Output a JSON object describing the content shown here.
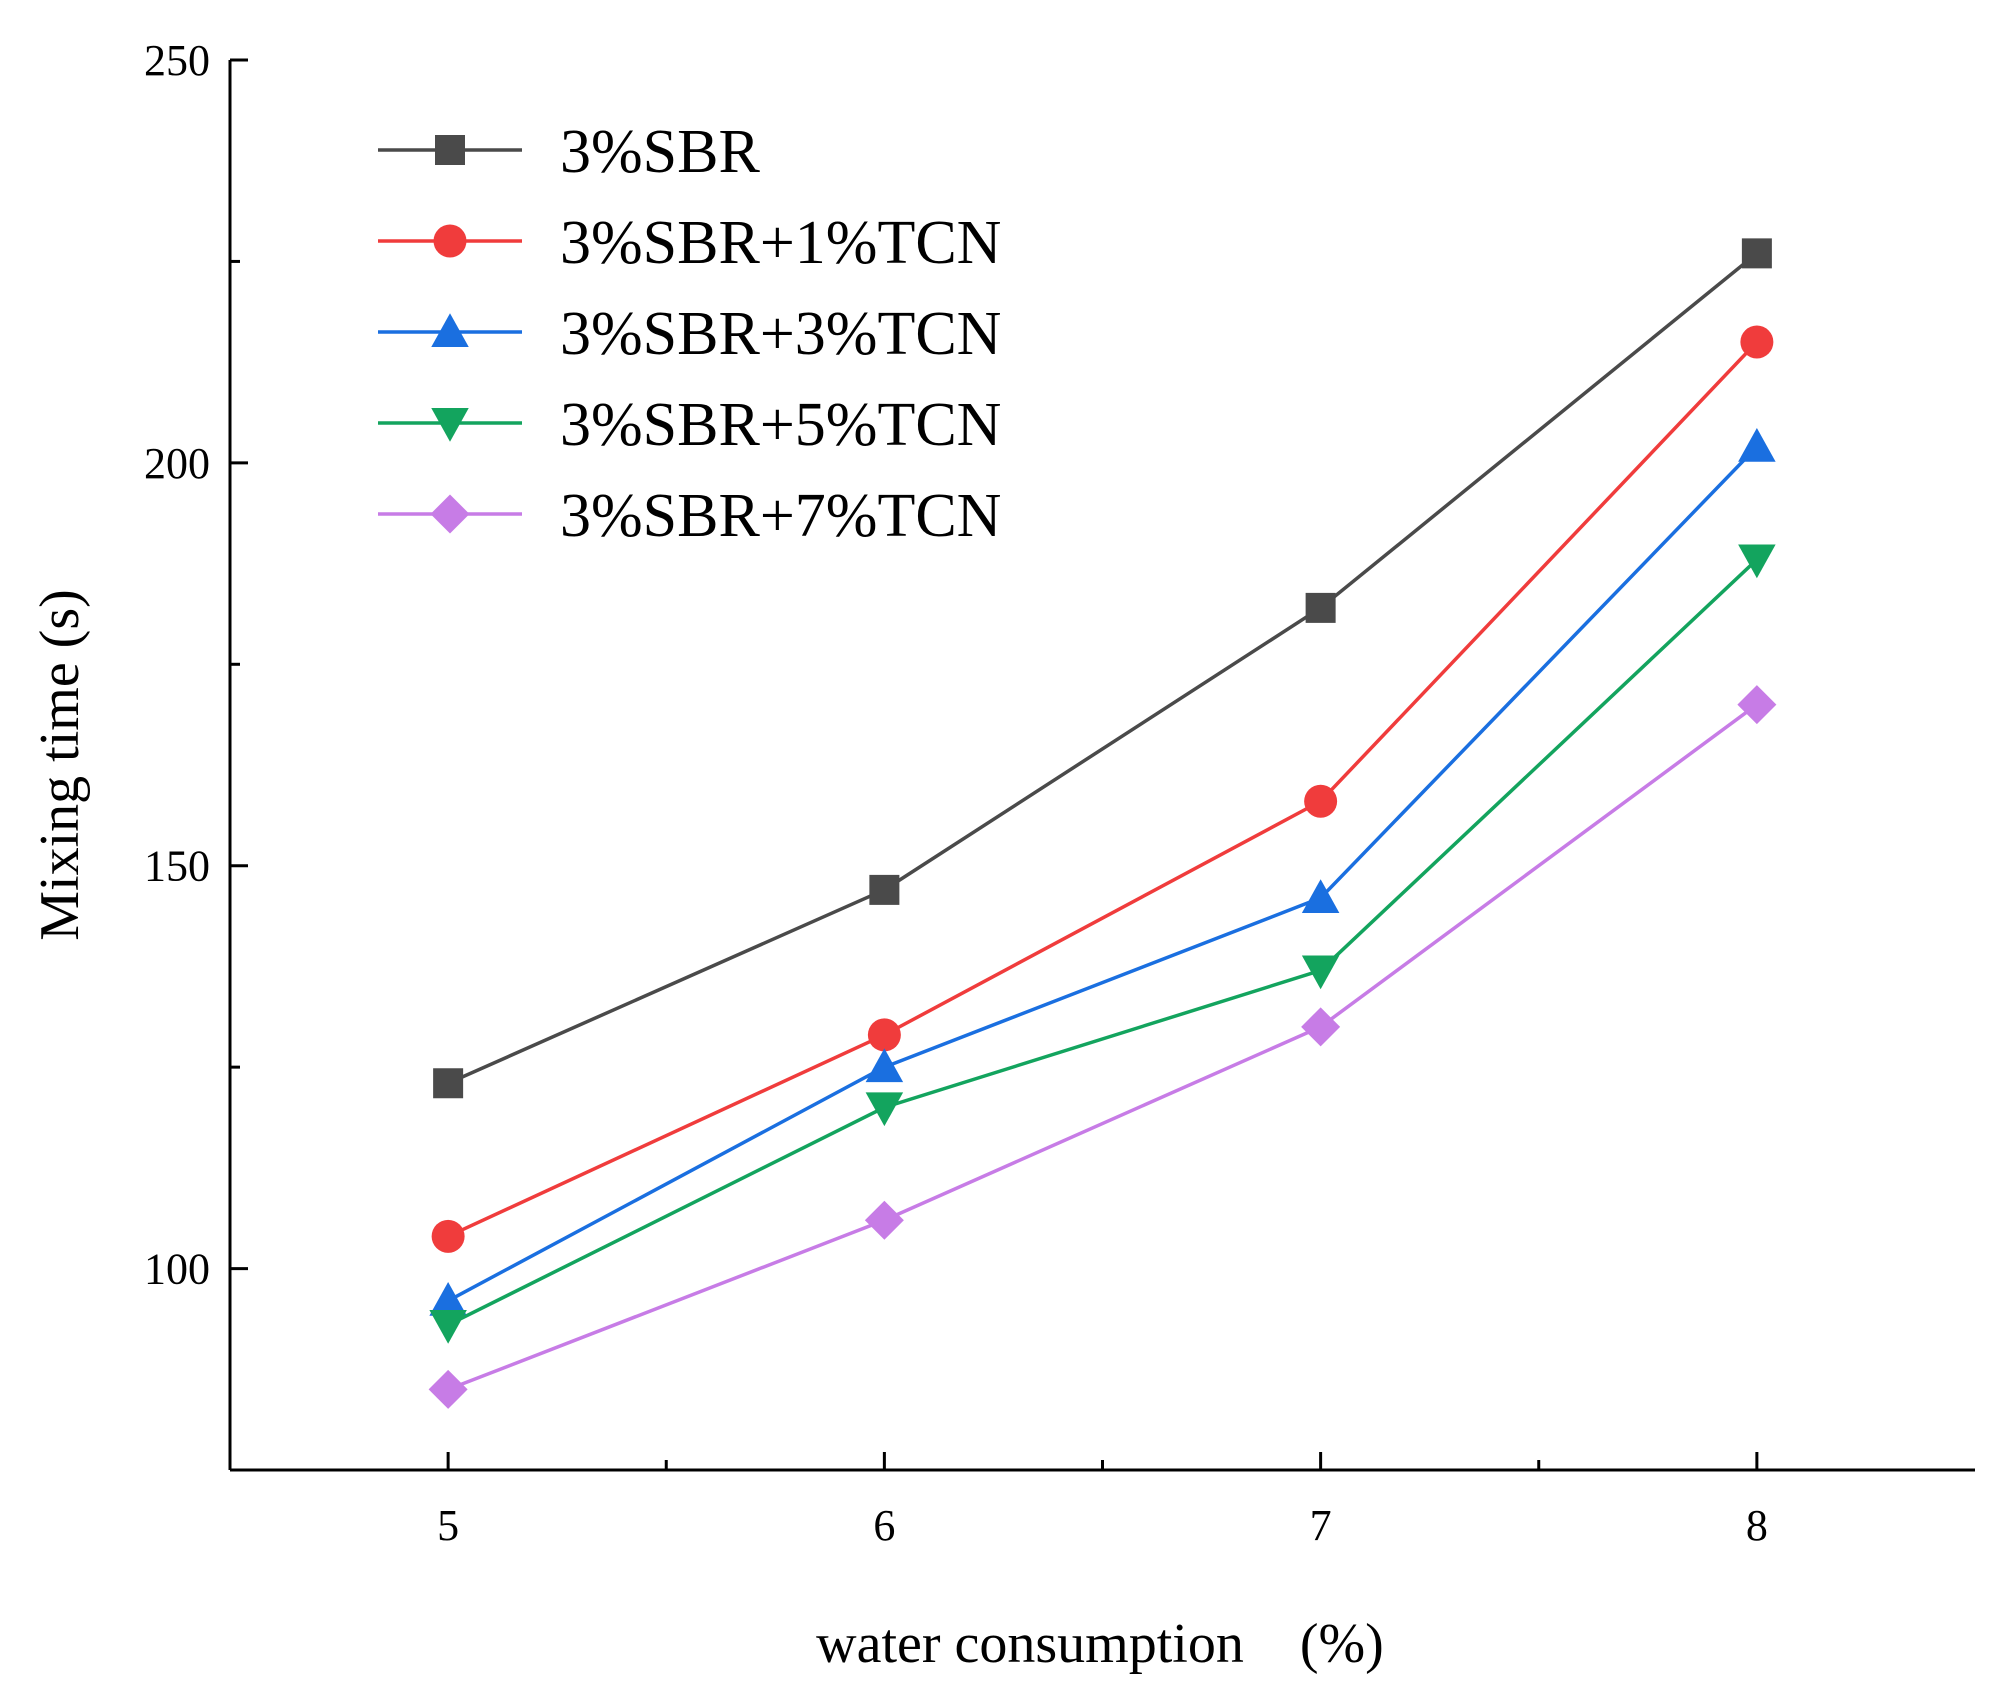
{
  "chart_data": {
    "type": "line",
    "title": "",
    "xlabel": "water consumption　(%)",
    "ylabel": "Mixing time (s)",
    "x": [
      5,
      6,
      7,
      8
    ],
    "xlim": [
      4.5,
      8.5
    ],
    "ylim": [
      75,
      250
    ],
    "xticks": [
      5,
      6,
      7,
      8
    ],
    "xticks_minor": [
      5.5,
      6.5,
      7.5
    ],
    "yticks": [
      100,
      150,
      200,
      250
    ],
    "yticks_minor": [
      125,
      175,
      225
    ],
    "legend_position": "top-left",
    "grid": false,
    "series": [
      {
        "name": "3%SBR",
        "values": [
          123,
          147,
          182,
          226
        ],
        "color": "#4a4a4a",
        "marker": "square"
      },
      {
        "name": "3%SBR+1%TCN",
        "values": [
          104,
          129,
          158,
          215
        ],
        "color": "#f03c3c",
        "marker": "circle"
      },
      {
        "name": "3%SBR+3%TCN",
        "values": [
          96,
          125,
          146,
          202
        ],
        "color": "#1a6fe0",
        "marker": "triangle-up"
      },
      {
        "name": "3%SBR+5%TCN",
        "values": [
          93,
          120,
          137,
          188
        ],
        "color": "#13a45e",
        "marker": "triangle-down"
      },
      {
        "name": "3%SBR+7%TCN",
        "values": [
          85,
          106,
          130,
          170
        ],
        "color": "#c77ce6",
        "marker": "diamond"
      }
    ]
  }
}
